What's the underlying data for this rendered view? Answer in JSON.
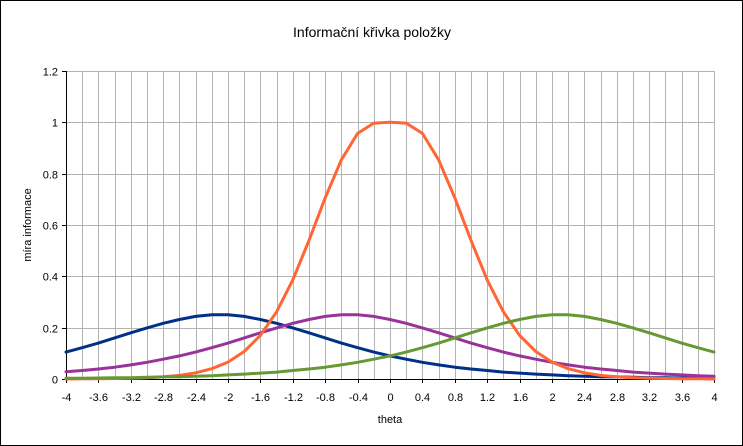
{
  "chart_data": {
    "type": "line",
    "title": "Informační křivka položky",
    "xlabel": "theta",
    "ylabel": "míra informace",
    "xlim": [
      -4,
      4
    ],
    "ylim": [
      0,
      1.2
    ],
    "x_ticks": [
      "-4",
      "-3.6",
      "-3.2",
      "-2.8",
      "-2.4",
      "-2",
      "-1.6",
      "-1.2",
      "-0.8",
      "-0.4",
      "0",
      "0.4",
      "0.8",
      "1.2",
      "1.6",
      "2",
      "2.4",
      "2.8",
      "3.2",
      "3.6",
      "4"
    ],
    "y_ticks": [
      "0",
      "0.2",
      "0.4",
      "0.6",
      "0.8",
      "1",
      "1.2"
    ],
    "grid": true,
    "legend": "none",
    "x": [
      -4,
      -3.8,
      -3.6,
      -3.4,
      -3.2,
      -3,
      -2.8,
      -2.6,
      -2.4,
      -2.2,
      -2,
      -1.8,
      -1.6,
      -1.4,
      -1.2,
      -1,
      -0.8,
      -0.6,
      -0.4,
      -0.2,
      0,
      0.2,
      0.4,
      0.6,
      0.8,
      1,
      1.2,
      1.4,
      1.6,
      1.8,
      2,
      2.2,
      2.4,
      2.6,
      2.8,
      3,
      3.2,
      3.4,
      3.6,
      3.8,
      4
    ],
    "series": [
      {
        "color": "#003087",
        "values": [
          0.105,
          0.122,
          0.14,
          0.16,
          0.18,
          0.199,
          0.217,
          0.232,
          0.244,
          0.25,
          0.25,
          0.244,
          0.232,
          0.217,
          0.199,
          0.18,
          0.16,
          0.14,
          0.122,
          0.105,
          0.09,
          0.077,
          0.065,
          0.055,
          0.046,
          0.039,
          0.033,
          0.027,
          0.023,
          0.019,
          0.016,
          0.013,
          0.011,
          0.009,
          0.008,
          0.007,
          0.005,
          0.005,
          0.004,
          0.003,
          0.003
        ]
      },
      {
        "color": "#993399",
        "values": [
          0.028,
          0.033,
          0.039,
          0.046,
          0.055,
          0.065,
          0.077,
          0.09,
          0.105,
          0.122,
          0.14,
          0.16,
          0.18,
          0.199,
          0.217,
          0.232,
          0.244,
          0.25,
          0.25,
          0.244,
          0.232,
          0.217,
          0.199,
          0.18,
          0.16,
          0.14,
          0.122,
          0.105,
          0.09,
          0.077,
          0.065,
          0.055,
          0.046,
          0.039,
          0.033,
          0.027,
          0.023,
          0.019,
          0.016,
          0.013,
          0.011
        ]
      },
      {
        "color": "#FF6633",
        "values": [
          0.0,
          0.001,
          0.001,
          0.002,
          0.003,
          0.005,
          0.008,
          0.014,
          0.024,
          0.04,
          0.066,
          0.107,
          0.17,
          0.262,
          0.386,
          0.54,
          0.706,
          0.854,
          0.957,
          0.997,
          1.0,
          0.997,
          0.957,
          0.854,
          0.706,
          0.54,
          0.386,
          0.262,
          0.17,
          0.107,
          0.066,
          0.04,
          0.024,
          0.014,
          0.008,
          0.005,
          0.003,
          0.002,
          0.001,
          0.001,
          0.0
        ]
      },
      {
        "color": "#669933",
        "values": [
          0.003,
          0.003,
          0.004,
          0.005,
          0.005,
          0.007,
          0.008,
          0.009,
          0.011,
          0.013,
          0.016,
          0.019,
          0.023,
          0.027,
          0.033,
          0.039,
          0.046,
          0.055,
          0.065,
          0.077,
          0.09,
          0.105,
          0.122,
          0.14,
          0.16,
          0.18,
          0.199,
          0.217,
          0.232,
          0.244,
          0.25,
          0.25,
          0.244,
          0.232,
          0.217,
          0.199,
          0.18,
          0.16,
          0.14,
          0.122,
          0.105
        ]
      }
    ]
  }
}
